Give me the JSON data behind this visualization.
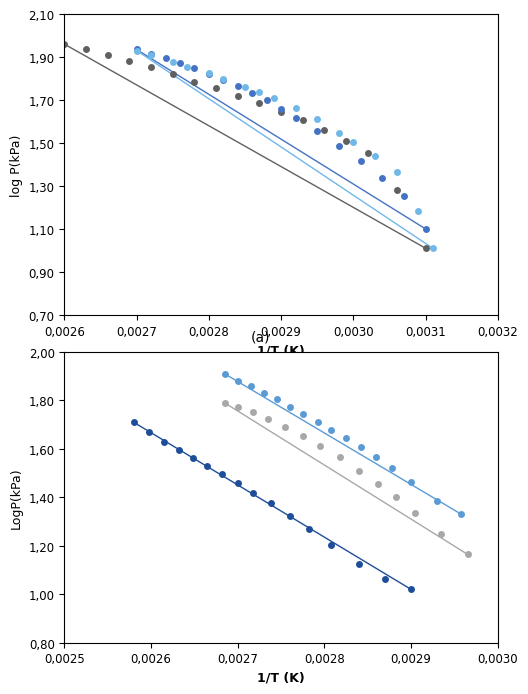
{
  "plot_a": {
    "ylabel": "log P(kPa)",
    "xlabel": "1/T (K)",
    "xlim": [
      0.0026,
      0.0032
    ],
    "ylim": [
      0.7,
      2.1
    ],
    "yticks": [
      0.7,
      0.9,
      1.1,
      1.3,
      1.5,
      1.7,
      1.9,
      2.1
    ],
    "xticks": [
      0.0026,
      0.0027,
      0.0028,
      0.0029,
      0.003,
      0.0031,
      0.0032
    ],
    "series": [
      {
        "color": "#606060",
        "scatter_x": [
          0.0026,
          0.00263,
          0.00266,
          0.00269,
          0.00272,
          0.00275,
          0.00278,
          0.00281,
          0.00284,
          0.00287,
          0.0029,
          0.00293,
          0.00296,
          0.00299,
          0.00302,
          0.00306,
          0.0031
        ],
        "scatter_y": [
          1.96,
          1.935,
          1.91,
          1.88,
          1.855,
          1.82,
          1.785,
          1.755,
          1.72,
          1.685,
          1.645,
          1.605,
          1.56,
          1.51,
          1.455,
          1.28,
          1.01
        ],
        "line_x": [
          0.0026,
          0.0031
        ],
        "line_y": [
          1.96,
          1.01
        ]
      },
      {
        "color": "#4472C4",
        "scatter_x": [
          0.0027,
          0.00272,
          0.00274,
          0.00276,
          0.00278,
          0.0028,
          0.00282,
          0.00284,
          0.00286,
          0.00288,
          0.0029,
          0.00292,
          0.00295,
          0.00298,
          0.00301,
          0.00304,
          0.00307,
          0.0031
        ],
        "scatter_y": [
          1.935,
          1.915,
          1.895,
          1.872,
          1.848,
          1.822,
          1.795,
          1.765,
          1.733,
          1.698,
          1.66,
          1.618,
          1.556,
          1.488,
          1.415,
          1.336,
          1.252,
          1.1
        ],
        "line_x": [
          0.0027,
          0.0031
        ],
        "line_y": [
          1.935,
          1.1
        ]
      },
      {
        "color": "#70B8E8",
        "scatter_x": [
          0.0027,
          0.00272,
          0.00275,
          0.00277,
          0.0028,
          0.00282,
          0.00285,
          0.00287,
          0.00289,
          0.00292,
          0.00295,
          0.00298,
          0.003,
          0.00303,
          0.00306,
          0.00309,
          0.00311
        ],
        "scatter_y": [
          1.93,
          1.908,
          1.878,
          1.855,
          1.825,
          1.8,
          1.762,
          1.738,
          1.71,
          1.665,
          1.61,
          1.545,
          1.505,
          1.44,
          1.365,
          1.185,
          1.01
        ],
        "line_x": [
          0.0027,
          0.00311
        ],
        "line_y": [
          1.93,
          1.01
        ]
      }
    ]
  },
  "plot_b": {
    "ylabel": "LogP(kPa)",
    "xlabel": "1/T (K)",
    "xlim": [
      0.0025,
      0.003
    ],
    "ylim": [
      0.8,
      2.0
    ],
    "yticks": [
      0.8,
      1.0,
      1.2,
      1.4,
      1.6,
      1.8,
      2.0
    ],
    "xticks": [
      0.0025,
      0.0026,
      0.0027,
      0.0028,
      0.0029,
      0.003
    ],
    "series": [
      {
        "color": "#1F4E99",
        "scatter_x": [
          0.00258,
          0.002598,
          0.002615,
          0.002632,
          0.002648,
          0.002665,
          0.002682,
          0.0027,
          0.002718,
          0.002738,
          0.00276,
          0.002782,
          0.002808,
          0.00284,
          0.00287,
          0.0029
        ],
        "scatter_y": [
          1.71,
          1.668,
          1.628,
          1.595,
          1.562,
          1.53,
          1.495,
          1.458,
          1.42,
          1.375,
          1.325,
          1.27,
          1.205,
          1.125,
          1.065,
          1.02
        ],
        "line_x": [
          0.00258,
          0.0029
        ],
        "line_y": [
          1.71,
          1.02
        ]
      },
      {
        "color": "#5B9BD5",
        "scatter_x": [
          0.002685,
          0.0027,
          0.002715,
          0.00273,
          0.002745,
          0.00276,
          0.002775,
          0.002792,
          0.002808,
          0.002825,
          0.002842,
          0.00286,
          0.002878,
          0.0029,
          0.00293,
          0.002958
        ],
        "scatter_y": [
          1.91,
          1.882,
          1.858,
          1.83,
          1.805,
          1.775,
          1.745,
          1.712,
          1.68,
          1.645,
          1.608,
          1.565,
          1.52,
          1.465,
          1.385,
          1.33
        ],
        "line_x": [
          0.002685,
          0.002958
        ],
        "line_y": [
          1.91,
          1.33
        ]
      },
      {
        "color": "#A8A8A8",
        "scatter_x": [
          0.002685,
          0.0027,
          0.002718,
          0.002735,
          0.002755,
          0.002775,
          0.002795,
          0.002818,
          0.00284,
          0.002862,
          0.002882,
          0.002905,
          0.002935,
          0.002965
        ],
        "scatter_y": [
          1.79,
          1.775,
          1.752,
          1.725,
          1.69,
          1.652,
          1.612,
          1.565,
          1.51,
          1.455,
          1.4,
          1.335,
          1.25,
          1.165
        ],
        "line_x": [
          0.002685,
          0.002965
        ],
        "line_y": [
          1.79,
          1.165
        ]
      }
    ]
  },
  "label_a": "(a)",
  "bg_color": "#f0f0f0"
}
